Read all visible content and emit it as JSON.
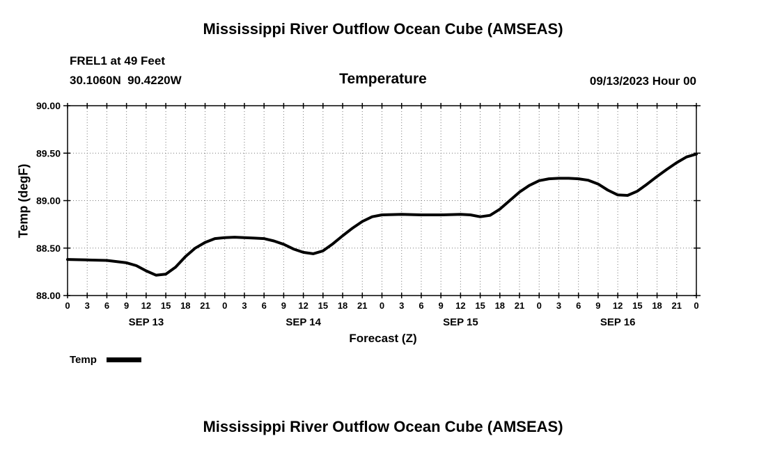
{
  "titles": {
    "top": "Mississippi River Outflow Ocean Cube (AMSEAS)",
    "bottom": "Mississippi River Outflow Ocean Cube (AMSEAS)"
  },
  "header": {
    "station": "FREL1 at 49 Feet",
    "coordinates": "30.1060N  90.4220W",
    "plot_title": "Temperature",
    "datetime": "09/13/2023 Hour 00"
  },
  "legend": {
    "label": "Temp",
    "line_color": "#000000"
  },
  "chart_data": {
    "type": "line",
    "title": "Temperature",
    "xlabel": "Forecast (Z)",
    "ylabel": "Temp (degF)",
    "xlim": [
      0,
      96
    ],
    "ylim": [
      88.0,
      90.0
    ],
    "y_ticks": [
      88.0,
      88.5,
      89.0,
      89.5,
      90.0
    ],
    "y_tick_labels": [
      "88.00",
      "88.50",
      "89.00",
      "89.50",
      "90.00"
    ],
    "x_tick_interval_hours": 3,
    "x_tick_labels": [
      "0",
      "3",
      "6",
      "9",
      "12",
      "15",
      "18",
      "21",
      "0",
      "3",
      "6",
      "9",
      "12",
      "15",
      "18",
      "21",
      "0",
      "3",
      "6",
      "9",
      "12",
      "15",
      "18",
      "21",
      "0",
      "3",
      "6",
      "9",
      "12",
      "15",
      "18",
      "21",
      "0"
    ],
    "day_labels": [
      {
        "label": "SEP 13",
        "center_hour": 12
      },
      {
        "label": "SEP 14",
        "center_hour": 36
      },
      {
        "label": "SEP 15",
        "center_hour": 60
      },
      {
        "label": "SEP 16",
        "center_hour": 84
      }
    ],
    "grid": "dotted",
    "legend_position": "bottom-left",
    "series": [
      {
        "name": "Temp",
        "color": "#000000",
        "points": [
          [
            0,
            88.38
          ],
          [
            3,
            88.375
          ],
          [
            6,
            88.37
          ],
          [
            9,
            88.345
          ],
          [
            10.5,
            88.315
          ],
          [
            12,
            88.26
          ],
          [
            13.5,
            88.215
          ],
          [
            15,
            88.225
          ],
          [
            16.5,
            88.3
          ],
          [
            18,
            88.41
          ],
          [
            19.5,
            88.5
          ],
          [
            21,
            88.56
          ],
          [
            22.5,
            88.6
          ],
          [
            24,
            88.61
          ],
          [
            25.5,
            88.615
          ],
          [
            27,
            88.61
          ],
          [
            28.5,
            88.605
          ],
          [
            30,
            88.6
          ],
          [
            31.5,
            88.575
          ],
          [
            33,
            88.54
          ],
          [
            34.5,
            88.49
          ],
          [
            36,
            88.455
          ],
          [
            37.5,
            88.44
          ],
          [
            39,
            88.47
          ],
          [
            40.5,
            88.545
          ],
          [
            42,
            88.63
          ],
          [
            43.5,
            88.71
          ],
          [
            45,
            88.78
          ],
          [
            46.5,
            88.83
          ],
          [
            48,
            88.85
          ],
          [
            51,
            88.855
          ],
          [
            54,
            88.85
          ],
          [
            57,
            88.85
          ],
          [
            60,
            88.855
          ],
          [
            61.5,
            88.85
          ],
          [
            63,
            88.83
          ],
          [
            64.5,
            88.845
          ],
          [
            66,
            88.91
          ],
          [
            67.5,
            89.0
          ],
          [
            69,
            89.09
          ],
          [
            70.5,
            89.16
          ],
          [
            72,
            89.21
          ],
          [
            73.5,
            89.23
          ],
          [
            75,
            89.235
          ],
          [
            76.5,
            89.235
          ],
          [
            78,
            89.23
          ],
          [
            79.5,
            89.215
          ],
          [
            81,
            89.175
          ],
          [
            82.5,
            89.11
          ],
          [
            84,
            89.06
          ],
          [
            85.5,
            89.055
          ],
          [
            87,
            89.1
          ],
          [
            88.5,
            89.175
          ],
          [
            90,
            89.255
          ],
          [
            91.5,
            89.33
          ],
          [
            93,
            89.4
          ],
          [
            94.5,
            89.46
          ],
          [
            96,
            89.49
          ]
        ]
      }
    ]
  }
}
